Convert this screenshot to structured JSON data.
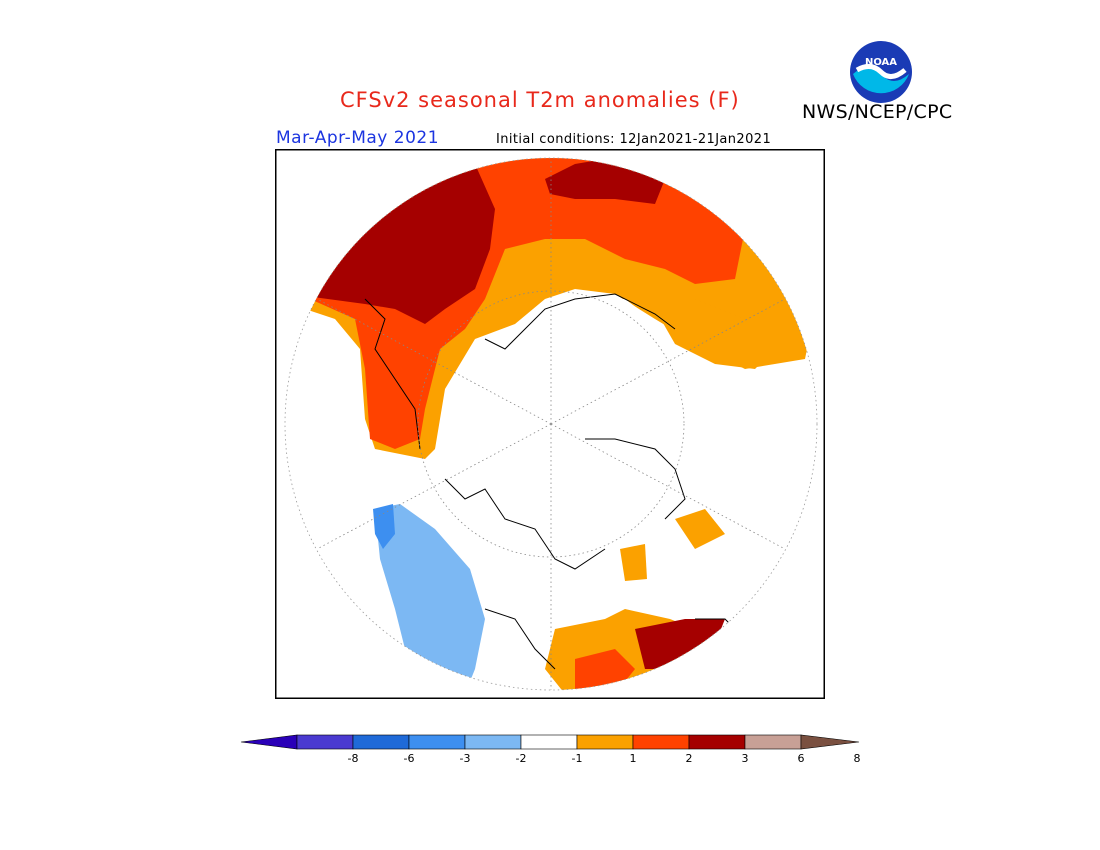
{
  "header": {
    "title": "CFSv2 seasonal T2m anomalies (F)",
    "org": "NWS/NCEP/CPC",
    "season": "Mar-Apr-May 2021",
    "initial_conditions": "Initial conditions: 12Jan2021-21Jan2021",
    "logo_text": "NOAA"
  },
  "map": {
    "projection": "north-polar-stereographic",
    "variable": "T2m anomaly",
    "units": "F"
  },
  "legend": {
    "labels": [
      "-8",
      "-6",
      "-3",
      "-2",
      "-1",
      "1",
      "2",
      "3",
      "6",
      "8"
    ],
    "colors": [
      "#2a00b8",
      "#4a3ad0",
      "#1f6ad8",
      "#3d8ff0",
      "#7cb8f3",
      "#ffffff",
      "#fba100",
      "#ff4200",
      "#a50000",
      "#c8a096",
      "#7a5040"
    ],
    "below_color": "#2a00b8",
    "above_color": "#7a5040"
  }
}
